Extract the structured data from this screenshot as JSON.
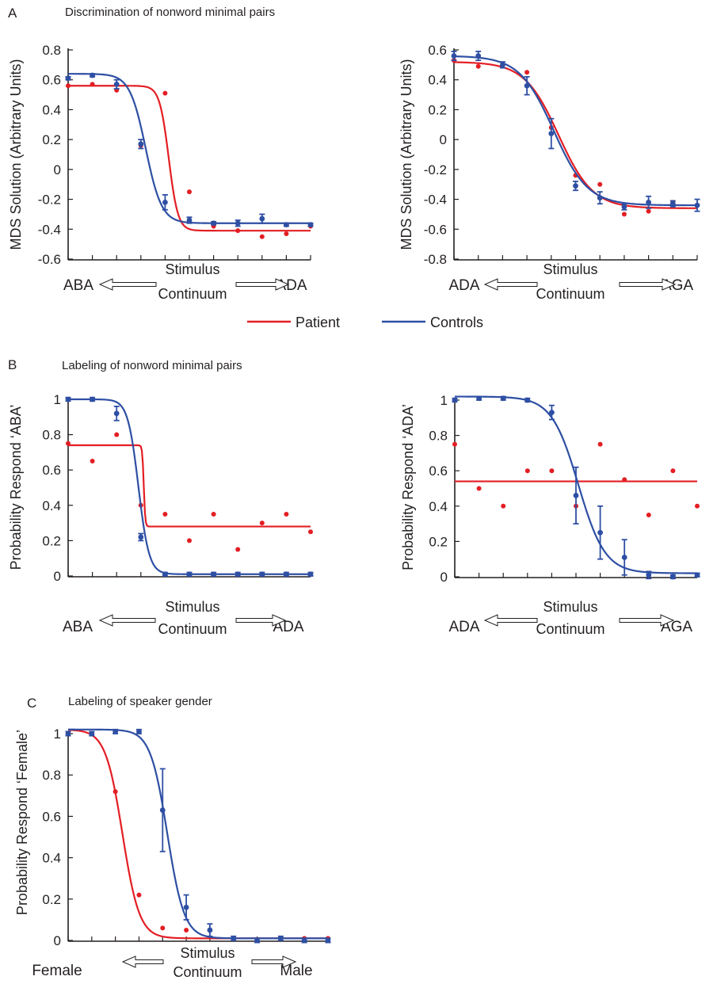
{
  "colors": {
    "patient": "#e31e24",
    "controls": "#2e4fa3",
    "axis": "#231f20"
  },
  "legend": {
    "patient": "Patient",
    "controls": "Controls"
  },
  "panels": [
    {
      "letter": "A",
      "title": "Discrimination of nonword minimal pairs"
    },
    {
      "letter": "B",
      "title": "Labeling of nonword minimal pairs"
    },
    {
      "letter": "C",
      "title": "Labeling of speaker gender"
    }
  ],
  "chart_data": [
    {
      "id": "A1",
      "type": "line",
      "title": "Discrimination of nonword minimal pairs",
      "xlabel": [
        "Stimulus",
        "Continuum"
      ],
      "x_end_labels": [
        "ABA",
        "ADA"
      ],
      "ylabel": "MDS Solution (Arbitrary Units)",
      "ylim": [
        -0.6,
        0.8
      ],
      "yticks": [
        0.8,
        0.6,
        0.4,
        0.2,
        0,
        -0.2,
        -0.4,
        -0.6
      ],
      "ytick_labels": [
        "0.8",
        "0.6",
        "0.4",
        "0.2",
        "0",
        "-0.2",
        "-0.4",
        "-0.6"
      ],
      "x": [
        1,
        2,
        3,
        4,
        5,
        6,
        7,
        8,
        9,
        10,
        11
      ],
      "series": [
        {
          "name": "Patient",
          "color": "#e31e24",
          "values": [
            0.56,
            0.57,
            0.53,
            0.16,
            0.51,
            -0.15,
            -0.38,
            -0.41,
            -0.45,
            -0.43,
            -0.38
          ],
          "fit": [
            0.56,
            -0.41,
            5.15,
            0.19
          ]
        },
        {
          "name": "Controls",
          "color": "#2e4fa3",
          "values": [
            0.61,
            0.63,
            0.57,
            0.17,
            -0.22,
            -0.34,
            -0.36,
            -0.36,
            -0.33,
            -0.37,
            -0.37
          ],
          "errors": [
            0.01,
            0.01,
            0.03,
            0.03,
            0.05,
            0.02,
            0.01,
            0.02,
            0.03,
            0.01,
            0.01
          ],
          "fit": [
            0.64,
            -0.36,
            4.2,
            0.33
          ]
        }
      ]
    },
    {
      "id": "A2",
      "type": "line",
      "xlabel": [
        "Stimulus",
        "Continuum"
      ],
      "x_end_labels": [
        "ADA",
        "AGA"
      ],
      "ylabel": "MDS Solution (Arbitrary Units)",
      "ylim": [
        -0.8,
        0.6
      ],
      "yticks": [
        0.6,
        0.4,
        0.2,
        0,
        -0.2,
        -0.4,
        -0.6,
        -0.8
      ],
      "ytick_labels": [
        "0.6",
        "0.4",
        "0.2",
        "0",
        "-0.2",
        "-0.4",
        "-0.6",
        "-0.8"
      ],
      "x": [
        1,
        2,
        3,
        4,
        5,
        6,
        7,
        8,
        9,
        10,
        11
      ],
      "series": [
        {
          "name": "Patient",
          "color": "#e31e24",
          "values": [
            0.53,
            0.49,
            0.5,
            0.45,
            0.08,
            -0.24,
            -0.3,
            -0.5,
            -0.48,
            -0.42,
            -0.44
          ],
          "fit": [
            0.52,
            -0.46,
            5.3,
            0.7
          ]
        },
        {
          "name": "Controls",
          "color": "#2e4fa3",
          "values": [
            0.56,
            0.56,
            0.5,
            0.36,
            0.04,
            -0.31,
            -0.39,
            -0.45,
            -0.42,
            -0.43,
            -0.44
          ],
          "errors": [
            0.03,
            0.03,
            0.02,
            0.06,
            0.1,
            0.03,
            0.04,
            0.02,
            0.04,
            0.02,
            0.04
          ],
          "fit": [
            0.56,
            -0.44,
            5.1,
            0.7
          ]
        }
      ]
    },
    {
      "id": "B1",
      "type": "line",
      "title": "Labeling of nonword minimal pairs",
      "xlabel": [
        "Stimulus",
        "Continuum"
      ],
      "x_end_labels": [
        "ABA",
        "ADA"
      ],
      "ylabel": "Probability Respond ‘ABA’",
      "ylim": [
        0,
        1
      ],
      "yticks": [
        1,
        0.8,
        0.6,
        0.4,
        0.2,
        0
      ],
      "ytick_labels": [
        "1",
        "0.8",
        "0.6",
        "0.4",
        "0.2",
        "0"
      ],
      "x": [
        1,
        2,
        3,
        4,
        5,
        6,
        7,
        8,
        9,
        10,
        11
      ],
      "series": [
        {
          "name": "Patient",
          "color": "#e31e24",
          "values": [
            0.75,
            0.65,
            0.8,
            0.4,
            0.35,
            0.2,
            0.35,
            0.15,
            0.3,
            0.35,
            0.25
          ],
          "fit": [
            0.74,
            0.28,
            4.12,
            0.03
          ]
        },
        {
          "name": "Controls",
          "color": "#2e4fa3",
          "values": [
            1.0,
            1.0,
            0.92,
            0.22,
            0.01,
            0.01,
            0.01,
            0.01,
            0.01,
            0.01,
            0.01
          ],
          "errors": [
            0.01,
            0.01,
            0.04,
            0.02,
            0.01,
            0.01,
            0.01,
            0.01,
            0.01,
            0.01,
            0.01
          ],
          "fit": [
            1.0,
            0.01,
            3.9,
            0.22
          ]
        }
      ]
    },
    {
      "id": "B2",
      "type": "line",
      "xlabel": [
        "Stimulus",
        "Continuum"
      ],
      "x_end_labels": [
        "ADA",
        "AGA"
      ],
      "ylabel": "Probability Respond ‘ADA’",
      "ylim": [
        0,
        1
      ],
      "yticks": [
        1,
        0.8,
        0.6,
        0.4,
        0.2,
        0
      ],
      "ytick_labels": [
        "1",
        "0.8",
        "0.6",
        "0.4",
        "0.2",
        "0"
      ],
      "x": [
        1,
        2,
        3,
        4,
        5,
        6,
        7,
        8,
        9,
        10,
        11
      ],
      "series": [
        {
          "name": "Patient",
          "color": "#e31e24",
          "values": [
            0.75,
            0.5,
            0.4,
            0.6,
            0.6,
            0.4,
            0.75,
            0.55,
            0.35,
            0.6,
            0.4
          ],
          "fit": [
            0.54,
            0.54,
            6,
            1
          ]
        },
        {
          "name": "Controls",
          "color": "#2e4fa3",
          "values": [
            1.0,
            1.01,
            1.01,
            1.0,
            0.93,
            0.46,
            0.25,
            0.11,
            0.01,
            0.0,
            0.01
          ],
          "errors": [
            0.01,
            0.01,
            0.01,
            0.01,
            0.04,
            0.16,
            0.15,
            0.1,
            0.02,
            0.01,
            0.01
          ],
          "fit": [
            1.02,
            0.02,
            6.1,
            0.55
          ]
        }
      ]
    },
    {
      "id": "C",
      "type": "line",
      "title": "Labeling of speaker gender",
      "xlabel": [
        "Stimulus",
        "Continuum"
      ],
      "x_end_labels": [
        "Female",
        "Male"
      ],
      "ylabel": "Probability Respond ‘Female’",
      "ylim": [
        0,
        1
      ],
      "yticks": [
        1,
        0.8,
        0.6,
        0.4,
        0.2,
        0
      ],
      "ytick_labels": [
        "1",
        "0.8",
        "0.6",
        "0.4",
        "0.2",
        "0"
      ],
      "x": [
        1,
        2,
        3,
        4,
        5,
        6,
        7,
        8,
        9,
        10,
        11,
        12
      ],
      "series": [
        {
          "name": "Patient",
          "color": "#e31e24",
          "values": [
            1.0,
            1.0,
            0.72,
            0.22,
            0.06,
            0.05,
            0.05,
            0.01,
            0.0,
            0.01,
            0.01,
            0.01
          ],
          "fit": [
            1.02,
            0.01,
            3.3,
            0.36
          ]
        },
        {
          "name": "Controls",
          "color": "#2e4fa3",
          "values": [
            1.0,
            1.0,
            1.01,
            1.01,
            0.63,
            0.16,
            0.05,
            0.01,
            0.0,
            0.01,
            0.0,
            0.0
          ],
          "errors": [
            0.01,
            0.01,
            0.01,
            0.01,
            0.2,
            0.06,
            0.03,
            0.01,
            0.01,
            0.01,
            0.01,
            0.01
          ],
          "fit": [
            1.02,
            0.01,
            5.2,
            0.36
          ]
        }
      ]
    }
  ]
}
